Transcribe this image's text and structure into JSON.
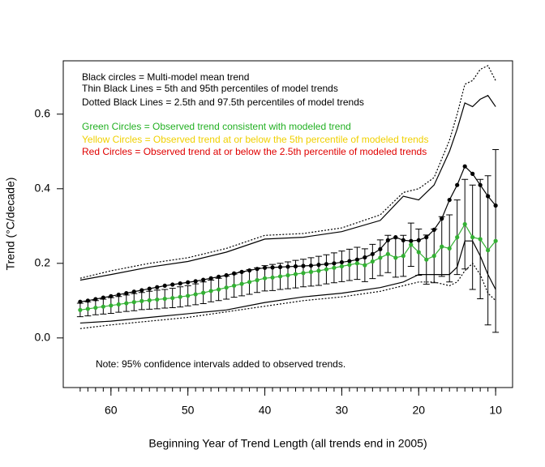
{
  "chart_data": {
    "type": "line",
    "x_label": "Beginning Year of Trend Length (all trends end in 2005)",
    "y_label": "Trend (°C/decade)",
    "xlim": [
      66.2,
      7.8
    ],
    "ylim": [
      -0.133,
      0.743
    ],
    "xticks": [
      60,
      50,
      40,
      30,
      20,
      10
    ],
    "yticks": [
      {
        "value": 0,
        "label": "0.0"
      },
      0.2,
      0.4,
      0.6
    ],
    "annotations": [
      {
        "text": "Black circles = Multi-model mean trend",
        "color": "#000000"
      },
      {
        "text": "Thin Black Lines = 5th and 95th percentiles of model trends",
        "color": "#000000"
      },
      {
        "text": "Dotted Black Lines = 2.5th and 97.5th percentiles of model trends",
        "color": "#000000"
      },
      {
        "text": "Green Circles = Observed trend consistent with modeled trend",
        "color": "#22b022"
      },
      {
        "text": "Yellow Circles = Observed trend at or below the 5th percentile of modeled trends",
        "color": "#f0d000"
      },
      {
        "text": "Red Circles = Observed trend at or below the 2.5th percentile of modeled trends",
        "color": "#e00000"
      },
      {
        "text": "Note: 95% confidence intervals added to observed trends.",
        "color": "#000000"
      }
    ],
    "x": [
      64,
      63,
      62,
      61,
      60,
      59,
      58,
      57,
      56,
      55,
      54,
      53,
      52,
      51,
      50,
      49,
      48,
      47,
      46,
      45,
      44,
      43,
      42,
      41,
      40,
      39,
      38,
      37,
      36,
      35,
      34,
      33,
      32,
      31,
      30,
      29,
      28,
      27,
      26,
      25,
      24,
      23,
      22,
      21,
      20,
      19,
      18,
      17,
      16,
      15,
      14,
      13,
      12,
      11,
      10
    ],
    "series": [
      {
        "color": "#000000",
        "marker": "circle",
        "linestyle": "solid",
        "values": [
          0.097,
          0.1,
          0.104,
          0.108,
          0.112,
          0.116,
          0.12,
          0.124,
          0.128,
          0.132,
          0.136,
          0.14,
          0.143,
          0.146,
          0.149,
          0.152,
          0.156,
          0.16,
          0.164,
          0.168,
          0.173,
          0.177,
          0.181,
          0.185,
          0.188,
          0.189,
          0.19,
          0.191,
          0.192,
          0.193,
          0.194,
          0.196,
          0.198,
          0.2,
          0.203,
          0.206,
          0.21,
          0.216,
          0.225,
          0.238,
          0.262,
          0.27,
          0.262,
          0.26,
          0.262,
          0.27,
          0.29,
          0.32,
          0.37,
          0.41,
          0.46,
          0.44,
          0.41,
          0.38,
          0.355
        ]
      },
      {
        "color": "#33b033",
        "marker": "circle",
        "linestyle": "solid",
        "values": [
          0.075,
          0.078,
          0.081,
          0.084,
          0.087,
          0.09,
          0.093,
          0.096,
          0.099,
          0.101,
          0.103,
          0.105,
          0.107,
          0.11,
          0.113,
          0.117,
          0.121,
          0.126,
          0.13,
          0.135,
          0.14,
          0.145,
          0.15,
          0.155,
          0.16,
          0.162,
          0.165,
          0.168,
          0.171,
          0.174,
          0.177,
          0.18,
          0.184,
          0.188,
          0.192,
          0.196,
          0.2,
          0.195,
          0.205,
          0.215,
          0.225,
          0.215,
          0.22,
          0.25,
          0.23,
          0.21,
          0.22,
          0.245,
          0.24,
          0.27,
          0.305,
          0.27,
          0.265,
          0.235,
          0.26
        ],
        "errors": [
          0.018,
          0.019,
          0.019,
          0.02,
          0.021,
          0.021,
          0.022,
          0.023,
          0.023,
          0.024,
          0.025,
          0.025,
          0.026,
          0.027,
          0.027,
          0.028,
          0.029,
          0.029,
          0.03,
          0.031,
          0.031,
          0.032,
          0.033,
          0.033,
          0.034,
          0.035,
          0.035,
          0.036,
          0.037,
          0.037,
          0.038,
          0.039,
          0.039,
          0.04,
          0.041,
          0.042,
          0.043,
          0.044,
          0.046,
          0.048,
          0.05,
          0.052,
          0.055,
          0.058,
          0.062,
          0.066,
          0.072,
          0.08,
          0.09,
          0.1,
          0.12,
          0.14,
          0.16,
          0.2,
          0.245
        ]
      },
      {
        "color": "#000000",
        "linestyle": "solid",
        "x": [
          64,
          60,
          55,
          50,
          45,
          40,
          35,
          30,
          25,
          22,
          20,
          18,
          16,
          15,
          14,
          13,
          12,
          11,
          10
        ],
        "values": [
          0.155,
          0.17,
          0.19,
          0.205,
          0.23,
          0.265,
          0.27,
          0.285,
          0.315,
          0.38,
          0.37,
          0.41,
          0.5,
          0.56,
          0.63,
          0.62,
          0.64,
          0.65,
          0.62
        ]
      },
      {
        "color": "#000000",
        "linestyle": "dotted",
        "x": [
          64,
          60,
          55,
          50,
          45,
          40,
          35,
          30,
          25,
          22,
          20,
          18,
          16,
          15,
          14,
          13,
          12,
          11,
          10
        ],
        "values": [
          0.16,
          0.18,
          0.2,
          0.215,
          0.24,
          0.275,
          0.28,
          0.295,
          0.33,
          0.39,
          0.4,
          0.43,
          0.53,
          0.6,
          0.68,
          0.69,
          0.72,
          0.73,
          0.69
        ]
      },
      {
        "color": "#000000",
        "linestyle": "solid",
        "x": [
          64,
          60,
          55,
          50,
          45,
          40,
          35,
          30,
          25,
          22,
          20,
          18,
          16,
          15,
          14,
          13,
          12,
          11,
          10
        ],
        "values": [
          0.04,
          0.045,
          0.055,
          0.065,
          0.075,
          0.095,
          0.11,
          0.12,
          0.135,
          0.15,
          0.17,
          0.17,
          0.17,
          0.19,
          0.26,
          0.26,
          0.22,
          0.17,
          0.13
        ]
      },
      {
        "color": "#000000",
        "linestyle": "dotted",
        "x": [
          64,
          60,
          55,
          50,
          45,
          40,
          35,
          30,
          25,
          22,
          20,
          18,
          16,
          15,
          14,
          13,
          12,
          11,
          10
        ],
        "values": [
          0.025,
          0.035,
          0.045,
          0.055,
          0.07,
          0.085,
          0.1,
          0.11,
          0.125,
          0.14,
          0.15,
          0.15,
          0.14,
          0.15,
          0.18,
          0.2,
          0.17,
          0.12,
          0.1
        ]
      }
    ]
  }
}
